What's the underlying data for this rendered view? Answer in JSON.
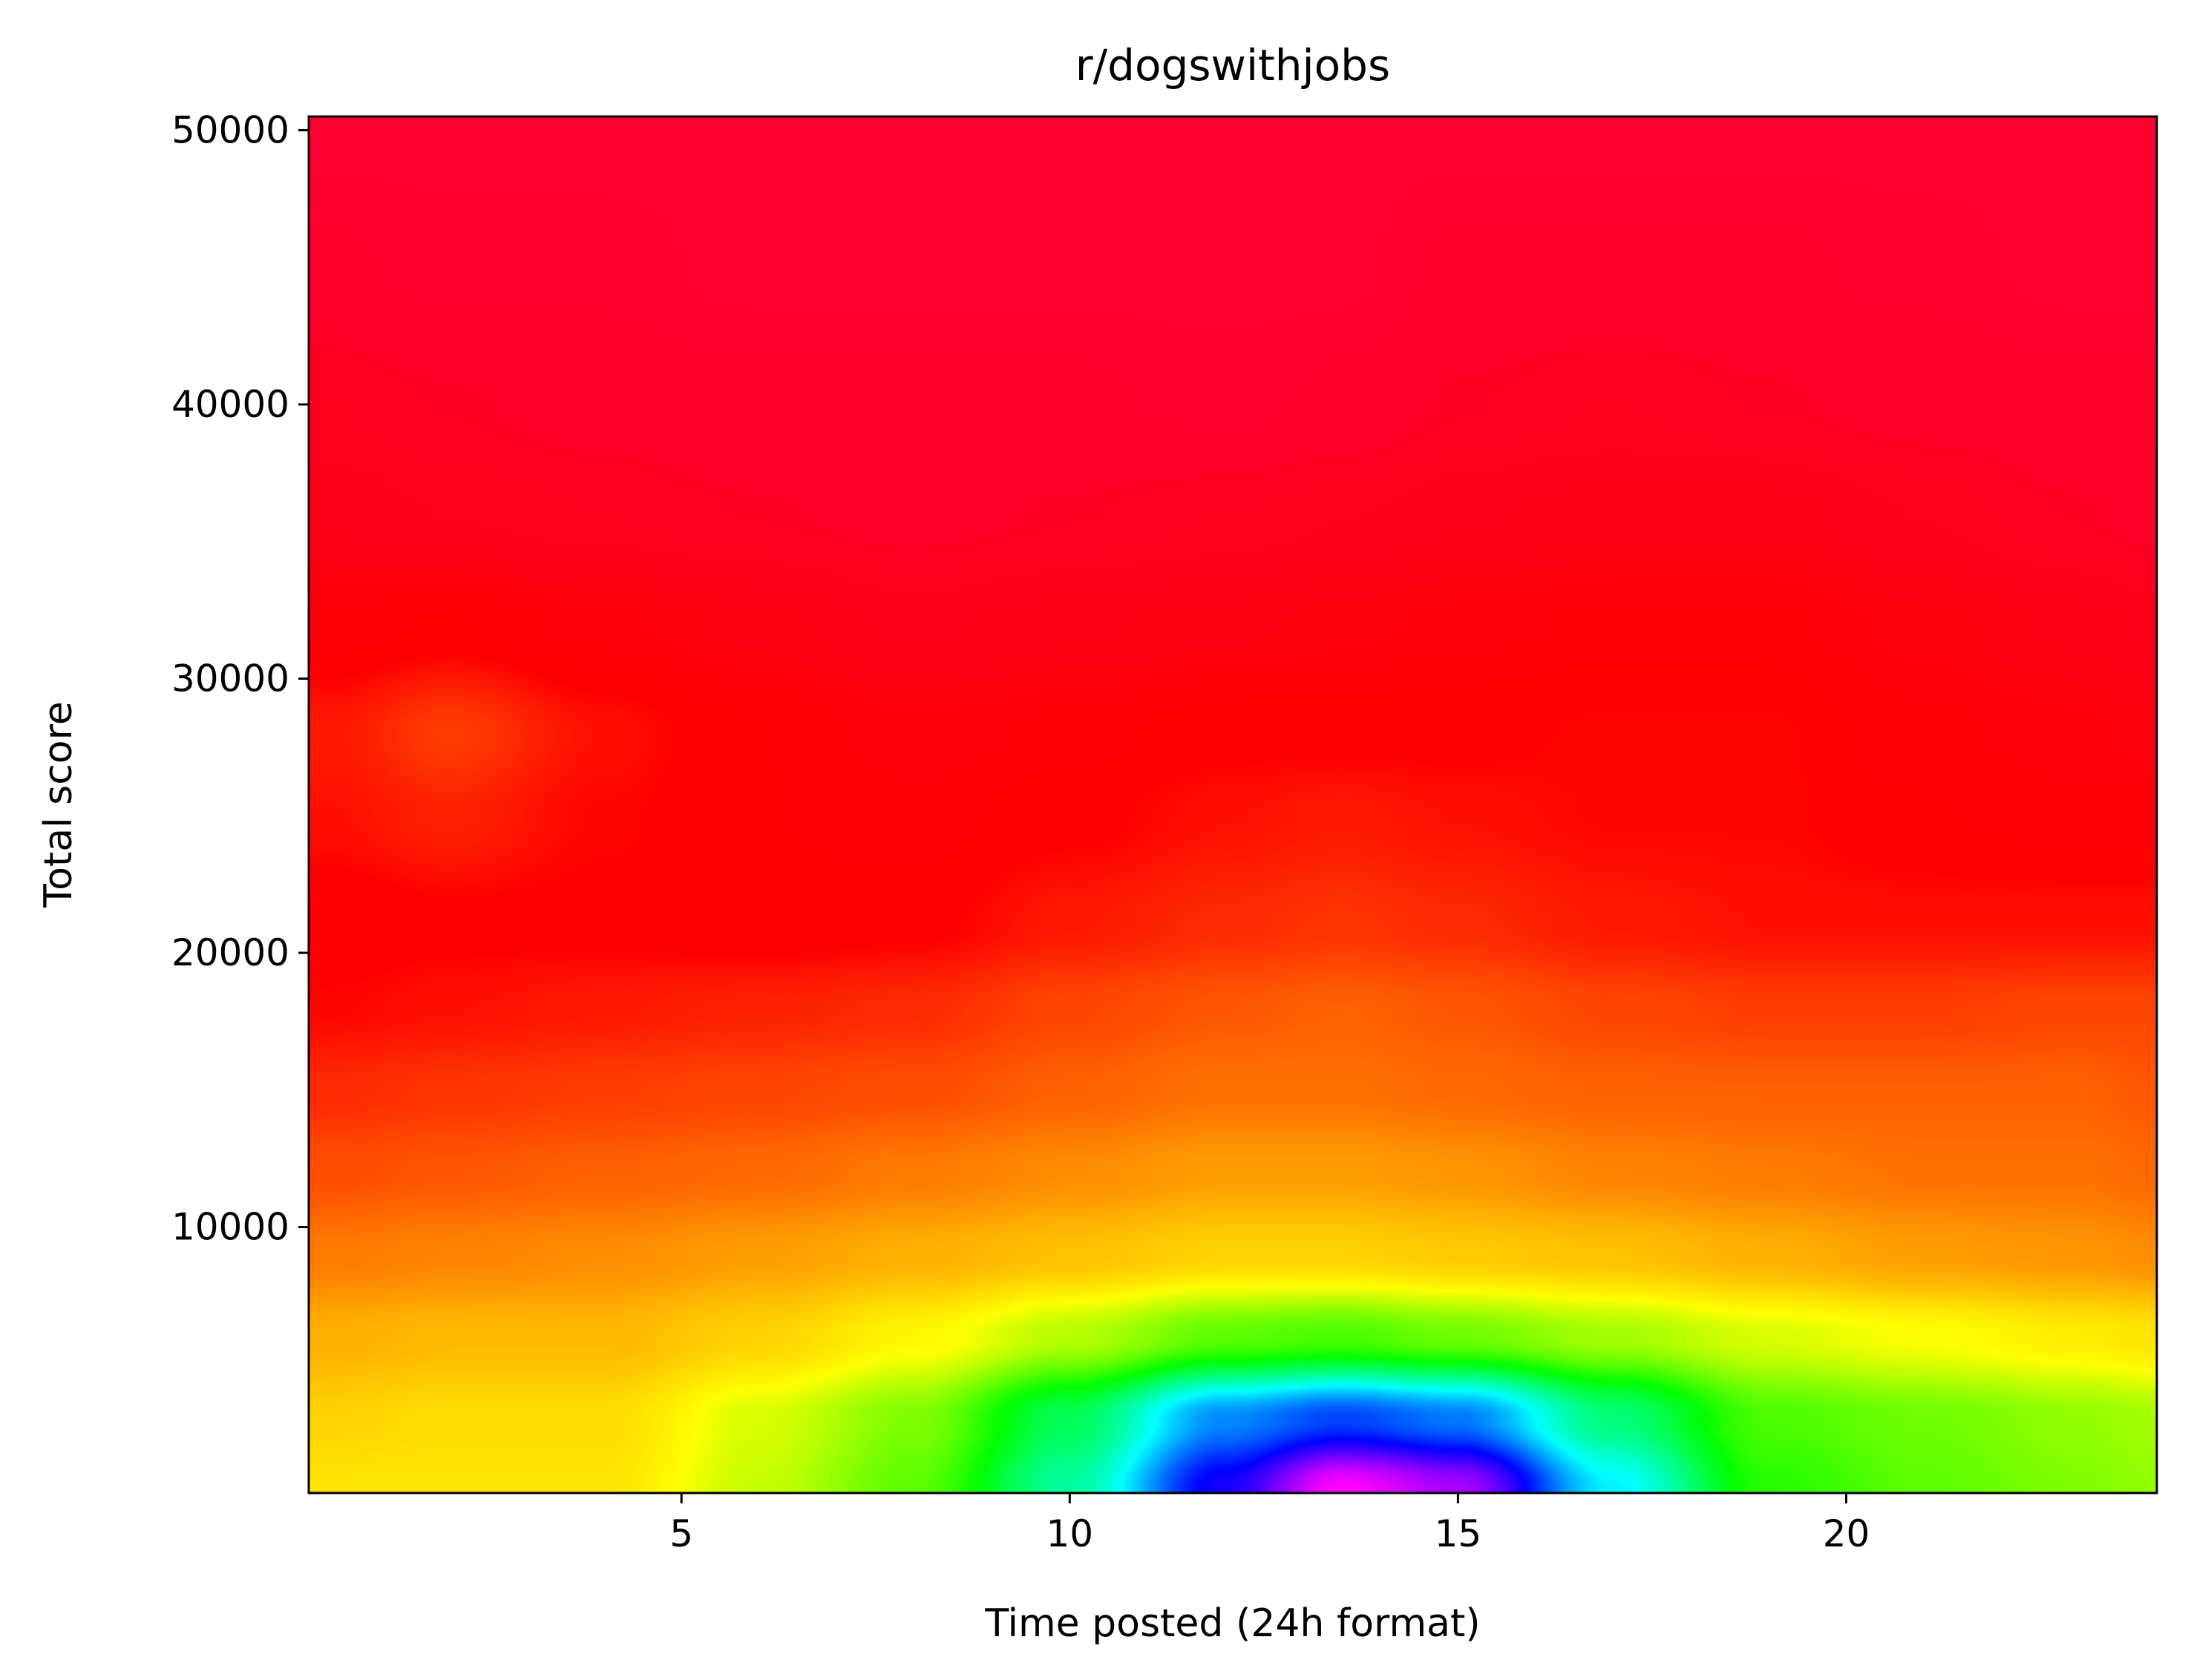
{
  "chart_data": {
    "type": "heatmap",
    "title": "r/dogswithjobs",
    "xlabel": "Time posted (24h format)",
    "ylabel": "Total score",
    "xlim": [
      0.2,
      24
    ],
    "ylim": [
      300,
      50500
    ],
    "x_ticks": [
      5,
      10,
      15,
      20
    ],
    "y_ticks": [
      10000,
      20000,
      30000,
      40000,
      50000
    ],
    "x_tick_labels": [
      "5",
      "10",
      "15",
      "20"
    ],
    "y_tick_labels": [
      "10000",
      "20000",
      "30000",
      "40000",
      "50000"
    ],
    "grid": false,
    "colormap": "gist_rainbow",
    "colormap_stops": [
      "#ff00ff",
      "#0000ff",
      "#00ffff",
      "#00ff00",
      "#ffff00",
      "#ff8000",
      "#ff0000",
      "#ff0033"
    ],
    "x": [
      0.5,
      2,
      4,
      6,
      8,
      10,
      12,
      13.5,
      15,
      17,
      19,
      21,
      23,
      24
    ],
    "y": [
      500,
      3000,
      6000,
      9000,
      12000,
      15000,
      18000,
      21000,
      25000,
      28000,
      32000,
      36000,
      40000,
      45000,
      50000
    ],
    "z": [
      [
        0.4,
        0.4,
        0.4,
        0.46,
        0.52,
        0.66,
        0.87,
        1.0,
        0.95,
        0.72,
        0.55,
        0.52,
        0.5,
        0.49
      ],
      [
        0.38,
        0.39,
        0.39,
        0.45,
        0.5,
        0.62,
        0.78,
        0.82,
        0.79,
        0.64,
        0.53,
        0.51,
        0.49,
        0.48
      ],
      [
        0.34,
        0.35,
        0.35,
        0.38,
        0.42,
        0.47,
        0.52,
        0.53,
        0.51,
        0.48,
        0.45,
        0.43,
        0.41,
        0.4
      ],
      [
        0.28,
        0.29,
        0.3,
        0.32,
        0.34,
        0.36,
        0.38,
        0.38,
        0.37,
        0.36,
        0.34,
        0.32,
        0.31,
        0.3
      ],
      [
        0.23,
        0.24,
        0.25,
        0.26,
        0.28,
        0.3,
        0.32,
        0.32,
        0.31,
        0.29,
        0.28,
        0.27,
        0.27,
        0.26
      ],
      [
        0.19,
        0.2,
        0.21,
        0.22,
        0.23,
        0.25,
        0.27,
        0.27,
        0.26,
        0.25,
        0.25,
        0.25,
        0.25,
        0.24
      ],
      [
        0.15,
        0.16,
        0.17,
        0.18,
        0.19,
        0.22,
        0.24,
        0.25,
        0.24,
        0.22,
        0.21,
        0.21,
        0.22,
        0.22
      ],
      [
        0.13,
        0.14,
        0.14,
        0.13,
        0.14,
        0.17,
        0.19,
        0.2,
        0.19,
        0.17,
        0.16,
        0.16,
        0.16,
        0.16
      ],
      [
        0.16,
        0.18,
        0.15,
        0.13,
        0.12,
        0.14,
        0.16,
        0.17,
        0.16,
        0.15,
        0.15,
        0.13,
        0.12,
        0.12
      ],
      [
        0.17,
        0.21,
        0.16,
        0.13,
        0.11,
        0.12,
        0.14,
        0.14,
        0.14,
        0.15,
        0.15,
        0.12,
        0.11,
        0.1
      ],
      [
        0.12,
        0.13,
        0.11,
        0.09,
        0.07,
        0.08,
        0.09,
        0.1,
        0.11,
        0.12,
        0.12,
        0.1,
        0.08,
        0.07
      ],
      [
        0.07,
        0.06,
        0.05,
        0.04,
        0.03,
        0.04,
        0.05,
        0.06,
        0.07,
        0.08,
        0.08,
        0.06,
        0.04,
        0.03
      ],
      [
        0.05,
        0.04,
        0.03,
        0.02,
        0.02,
        0.02,
        0.01,
        0.02,
        0.04,
        0.05,
        0.04,
        0.03,
        0.02,
        0.02
      ],
      [
        0.02,
        0.01,
        0.01,
        0.0,
        0.0,
        0.0,
        0.0,
        0.0,
        0.02,
        0.02,
        0.02,
        0.01,
        0.0,
        0.0
      ],
      [
        0.0,
        0.0,
        0.0,
        0.0,
        0.0,
        0.0,
        0.0,
        0.0,
        0.0,
        0.0,
        0.0,
        0.0,
        0.0,
        0.0
      ]
    ],
    "z_scale": "density (0 = lowest, 1 = highest)"
  }
}
